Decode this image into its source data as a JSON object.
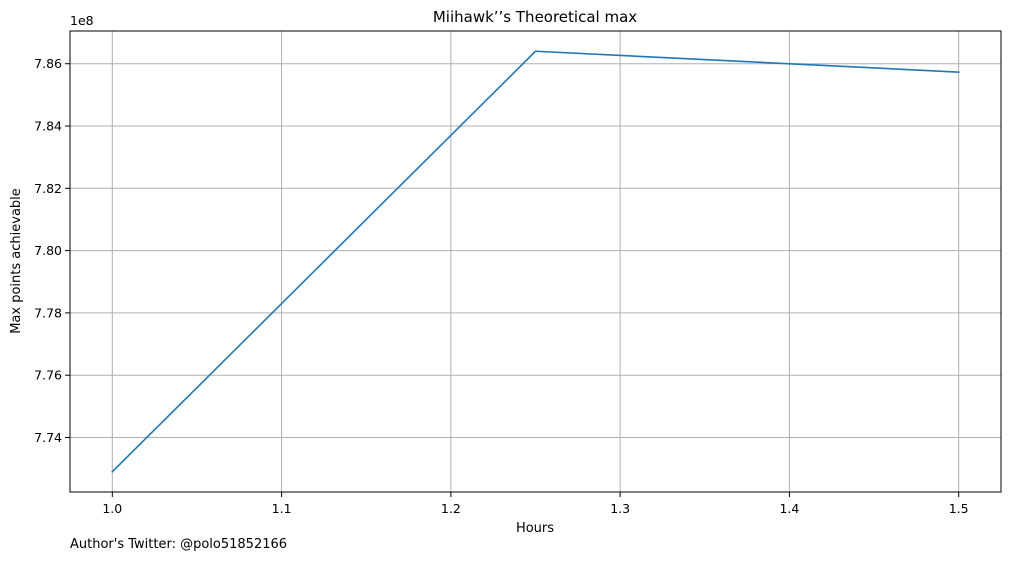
{
  "chart_data": {
    "type": "line",
    "title": "Miihawk’’s Theoretical max",
    "xlabel": "Hours",
    "ylabel": "Max points achievable",
    "y_offset_label": "1e8",
    "x_ticks": [
      "1.0",
      "1.1",
      "1.2",
      "1.3",
      "1.4",
      "1.5"
    ],
    "y_ticks": [
      "7.74",
      "7.76",
      "7.78",
      "7.80",
      "7.82",
      "7.84",
      "7.86"
    ],
    "xlim": [
      0.975,
      1.525
    ],
    "ylim": [
      7.7225,
      7.8705
    ],
    "grid": true,
    "legend": "none",
    "line_color": "#1f77b4",
    "series": [
      {
        "x": [
          1.0,
          1.25,
          1.5
        ],
        "y": [
          7.729,
          7.864,
          7.8573
        ]
      }
    ]
  },
  "footnote": "Author's Twitter: @polo51852166"
}
